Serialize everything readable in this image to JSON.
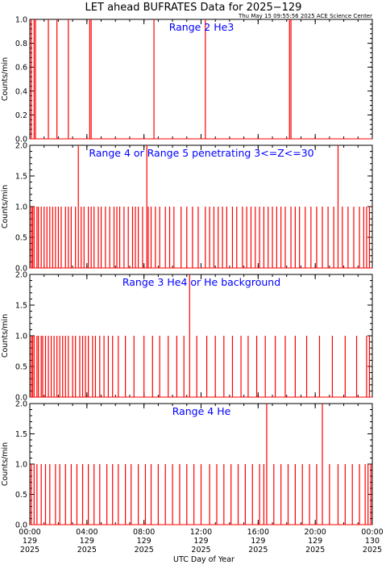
{
  "title": "LET ahead BUFRATES Data for 2025−129",
  "timestamp": "Thu May 15 09:55:56 2025 ACE Science Center",
  "colors": {
    "series": "#ff0000",
    "panel_label": "#0000ff",
    "axes": "#000000"
  },
  "chart_data": {
    "type": "line",
    "xlabel": "UTC Day of Year",
    "xlim": [
      0,
      24
    ],
    "x_ticks": [
      {
        "value": 0,
        "time": "00:00",
        "day": "129",
        "year": "2025"
      },
      {
        "value": 4,
        "time": "04:00",
        "day": "129",
        "year": "2025"
      },
      {
        "value": 8,
        "time": "08:00",
        "day": "129",
        "year": "2025"
      },
      {
        "value": 12,
        "time": "12:00",
        "day": "129",
        "year": "2025"
      },
      {
        "value": 16,
        "time": "16:00",
        "day": "129",
        "year": "2025"
      },
      {
        "value": 20,
        "time": "20:00",
        "day": "129",
        "year": "2025"
      },
      {
        "value": 24,
        "time": "00:00",
        "day": "130",
        "year": "2025"
      }
    ],
    "panels": [
      {
        "label": "Range 2 He3",
        "ylabel": "Counts/min",
        "ylim": [
          0,
          1.0
        ],
        "yticks": [
          "0.0",
          "0.2",
          "0.4",
          "0.6",
          "0.8",
          "1.0"
        ],
        "ytick_values": [
          0,
          0.2,
          0.4,
          0.6,
          0.8,
          1.0
        ],
        "spikes": [
          [
            0.1,
            1
          ],
          [
            0.3,
            1
          ],
          [
            0.4,
            1
          ],
          [
            1.3,
            1
          ],
          [
            1.9,
            1
          ],
          [
            2.7,
            1
          ],
          [
            4.2,
            1
          ],
          [
            4.3,
            1
          ],
          [
            8.7,
            1
          ],
          [
            12.3,
            1
          ],
          [
            18.2,
            1
          ],
          [
            18.3,
            1
          ]
        ]
      },
      {
        "label": "Range 4 or Range 5 penetrating 3<=Z<=30",
        "ylabel": "Counts/min",
        "ylim": [
          0,
          2.0
        ],
        "yticks": [
          "0.0",
          "0.5",
          "1.0",
          "1.5",
          "2.0"
        ],
        "ytick_values": [
          0,
          0.5,
          1.0,
          1.5,
          2.0
        ],
        "spikes": [
          [
            0.1,
            1
          ],
          [
            0.2,
            1
          ],
          [
            0.3,
            1
          ],
          [
            0.5,
            1
          ],
          [
            0.6,
            1
          ],
          [
            0.8,
            1
          ],
          [
            1.0,
            1
          ],
          [
            1.2,
            1
          ],
          [
            1.4,
            1
          ],
          [
            1.6,
            1
          ],
          [
            1.8,
            1
          ],
          [
            2.0,
            1
          ],
          [
            2.2,
            1
          ],
          [
            2.5,
            1
          ],
          [
            2.7,
            1
          ],
          [
            2.9,
            1
          ],
          [
            3.2,
            1
          ],
          [
            3.4,
            2
          ],
          [
            3.6,
            1
          ],
          [
            3.8,
            1
          ],
          [
            4.1,
            1
          ],
          [
            4.3,
            1
          ],
          [
            4.5,
            1
          ],
          [
            4.8,
            1
          ],
          [
            5.0,
            1
          ],
          [
            5.3,
            1
          ],
          [
            5.6,
            1
          ],
          [
            5.9,
            1
          ],
          [
            6.1,
            1
          ],
          [
            6.3,
            1
          ],
          [
            6.6,
            1
          ],
          [
            6.9,
            1
          ],
          [
            7.2,
            1
          ],
          [
            7.4,
            1
          ],
          [
            7.6,
            1
          ],
          [
            7.9,
            1
          ],
          [
            8.2,
            2
          ],
          [
            8.3,
            1
          ],
          [
            8.5,
            1
          ],
          [
            8.8,
            1
          ],
          [
            9.1,
            1
          ],
          [
            9.5,
            1
          ],
          [
            9.8,
            1
          ],
          [
            10.1,
            1
          ],
          [
            10.6,
            1
          ],
          [
            11.0,
            1
          ],
          [
            11.4,
            1
          ],
          [
            11.8,
            1
          ],
          [
            12.3,
            1
          ],
          [
            12.6,
            1
          ],
          [
            12.9,
            1
          ],
          [
            13.2,
            1
          ],
          [
            13.5,
            1
          ],
          [
            13.8,
            1
          ],
          [
            14.2,
            1
          ],
          [
            14.5,
            1
          ],
          [
            14.9,
            1
          ],
          [
            15.2,
            1
          ],
          [
            15.5,
            1
          ],
          [
            15.8,
            1
          ],
          [
            16.1,
            1
          ],
          [
            16.4,
            1
          ],
          [
            16.7,
            1
          ],
          [
            17.0,
            1
          ],
          [
            17.3,
            1
          ],
          [
            17.6,
            1
          ],
          [
            17.9,
            1
          ],
          [
            18.3,
            1
          ],
          [
            18.6,
            1
          ],
          [
            18.9,
            1
          ],
          [
            19.3,
            1
          ],
          [
            19.7,
            1
          ],
          [
            20.1,
            1
          ],
          [
            20.5,
            1
          ],
          [
            20.9,
            1
          ],
          [
            21.3,
            1
          ],
          [
            21.6,
            2
          ],
          [
            21.9,
            1
          ],
          [
            22.3,
            1
          ],
          [
            22.7,
            1
          ],
          [
            23.1,
            1
          ],
          [
            23.4,
            1
          ],
          [
            23.6,
            1
          ],
          [
            23.8,
            1
          ]
        ]
      },
      {
        "label": "Range 3 He4 or He background",
        "ylabel": "Counts/min",
        "ylim": [
          0,
          2.0
        ],
        "yticks": [
          "0.0",
          "0.5",
          "1.0",
          "1.5",
          "2.0"
        ],
        "ytick_values": [
          0,
          0.5,
          1.0,
          1.5,
          2.0
        ],
        "spikes": [
          [
            0.1,
            1
          ],
          [
            0.2,
            1
          ],
          [
            0.3,
            1
          ],
          [
            0.5,
            1
          ],
          [
            0.6,
            1
          ],
          [
            0.8,
            1
          ],
          [
            0.9,
            1
          ],
          [
            1.1,
            1
          ],
          [
            1.3,
            1
          ],
          [
            1.5,
            1
          ],
          [
            1.7,
            1
          ],
          [
            1.9,
            1
          ],
          [
            2.1,
            1
          ],
          [
            2.3,
            1
          ],
          [
            2.5,
            1
          ],
          [
            2.7,
            1
          ],
          [
            3.0,
            1
          ],
          [
            3.2,
            1
          ],
          [
            3.5,
            1
          ],
          [
            3.7,
            1
          ],
          [
            3.9,
            1
          ],
          [
            4.1,
            1
          ],
          [
            4.4,
            1
          ],
          [
            4.6,
            1
          ],
          [
            4.9,
            1
          ],
          [
            5.2,
            1
          ],
          [
            5.5,
            1
          ],
          [
            5.8,
            1
          ],
          [
            6.2,
            1
          ],
          [
            6.7,
            1
          ],
          [
            7.3,
            1
          ],
          [
            8.0,
            1
          ],
          [
            8.6,
            1
          ],
          [
            9.1,
            1
          ],
          [
            9.7,
            1
          ],
          [
            10.3,
            1
          ],
          [
            10.8,
            1
          ],
          [
            11.2,
            2
          ],
          [
            11.7,
            1
          ],
          [
            12.4,
            1
          ],
          [
            13.0,
            1
          ],
          [
            13.6,
            1
          ],
          [
            14.2,
            1
          ],
          [
            14.8,
            1
          ],
          [
            15.3,
            1
          ],
          [
            15.9,
            1
          ],
          [
            16.5,
            1
          ],
          [
            17.2,
            1
          ],
          [
            17.9,
            1
          ],
          [
            18.6,
            1
          ],
          [
            19.4,
            1
          ],
          [
            20.3,
            1
          ],
          [
            21.2,
            1
          ],
          [
            22.1,
            1
          ],
          [
            22.9,
            1
          ],
          [
            23.6,
            1
          ],
          [
            23.8,
            1
          ]
        ]
      },
      {
        "label": "Range 4 He",
        "ylabel": "Counts/min",
        "ylim": [
          0,
          2.0
        ],
        "yticks": [
          "0.0",
          "0.5",
          "1.0",
          "1.5",
          "2.0"
        ],
        "ytick_values": [
          0,
          0.5,
          1.0,
          1.5,
          2.0
        ],
        "spikes": [
          [
            0.1,
            1
          ],
          [
            0.3,
            1
          ],
          [
            0.5,
            1
          ],
          [
            0.8,
            1
          ],
          [
            1.1,
            1
          ],
          [
            1.4,
            1
          ],
          [
            1.8,
            1
          ],
          [
            2.1,
            1
          ],
          [
            2.5,
            1
          ],
          [
            2.9,
            1
          ],
          [
            3.3,
            1
          ],
          [
            3.7,
            1
          ],
          [
            4.1,
            1
          ],
          [
            4.5,
            1
          ],
          [
            4.9,
            1
          ],
          [
            5.4,
            1
          ],
          [
            5.8,
            1
          ],
          [
            6.2,
            1
          ],
          [
            6.7,
            1
          ],
          [
            7.1,
            1
          ],
          [
            7.6,
            1
          ],
          [
            8.1,
            1
          ],
          [
            8.5,
            1
          ],
          [
            9.0,
            1
          ],
          [
            9.5,
            1
          ],
          [
            10.0,
            1
          ],
          [
            10.5,
            1
          ],
          [
            11.0,
            1
          ],
          [
            11.5,
            1
          ],
          [
            12.0,
            1
          ],
          [
            12.6,
            1
          ],
          [
            13.1,
            1
          ],
          [
            13.6,
            1
          ],
          [
            14.1,
            1
          ],
          [
            14.6,
            1
          ],
          [
            15.1,
            1
          ],
          [
            15.6,
            1
          ],
          [
            16.1,
            1
          ],
          [
            16.4,
            1
          ],
          [
            16.6,
            2
          ],
          [
            17.1,
            1
          ],
          [
            17.6,
            1
          ],
          [
            18.1,
            1
          ],
          [
            18.6,
            1
          ],
          [
            19.1,
            1
          ],
          [
            19.6,
            1
          ],
          [
            20.1,
            1
          ],
          [
            20.5,
            2
          ],
          [
            21.0,
            1
          ],
          [
            21.6,
            1
          ],
          [
            22.1,
            1
          ],
          [
            22.6,
            1
          ],
          [
            23.1,
            1
          ],
          [
            23.5,
            1
          ],
          [
            23.7,
            1
          ],
          [
            23.9,
            1
          ]
        ]
      }
    ]
  }
}
